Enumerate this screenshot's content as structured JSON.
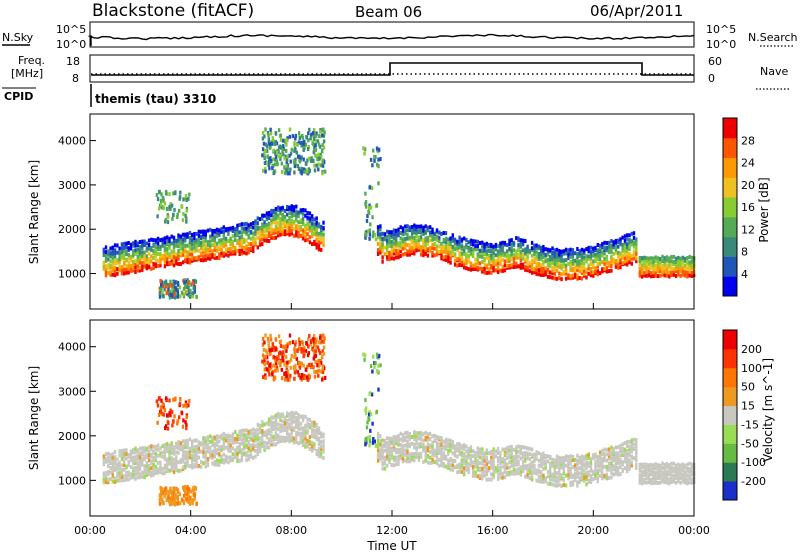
{
  "header": {
    "station": "Blackstone (fitACF)",
    "beam": "Beam 06",
    "date": "06/Apr/2011"
  },
  "noise_panel": {
    "left_label": "N.Sky",
    "right_label": "N.Search",
    "tick_top": "10^5",
    "tick_bottom": "10^0"
  },
  "freq_panel": {
    "left_label_1": "Freq.",
    "left_label_2": "[MHz]",
    "left_ticks": [
      "18",
      "8"
    ],
    "right_label": "Nave",
    "right_ticks": [
      "60",
      "0"
    ]
  },
  "cpid_panel": {
    "label": "CPID",
    "program": "themis (tau) 3310"
  },
  "chart_data": [
    {
      "type": "heatmap",
      "title": "Power",
      "xlabel": "",
      "ylabel": "Slant Range [km]",
      "xlim": [
        "00:00",
        "24:00"
      ],
      "ylim": [
        200,
        4600
      ],
      "y_ticks": [
        "1000",
        "2000",
        "3000",
        "4000"
      ],
      "colorbar": {
        "label": "Power [dB]",
        "ticks": [
          "28",
          "24",
          "20",
          "16",
          "12",
          "8",
          "4"
        ],
        "range": [
          0,
          30
        ],
        "colors": [
          "#0000ee",
          "#2255bb",
          "#3a8a7a",
          "#55aa55",
          "#88cc33",
          "#f0c020",
          "#ff9900",
          "#ff5500",
          "#ee0000"
        ]
      },
      "features": [
        {
          "name": "main band",
          "time_hours": [
            0.5,
            9.3
          ],
          "range_km": [
            1200,
            2300
          ]
        },
        {
          "name": "upper patch",
          "time_hours": [
            6.8,
            9.3
          ],
          "range_km": [
            3300,
            4300
          ]
        },
        {
          "name": "afternoon band",
          "time_hours": [
            11.5,
            21.7
          ],
          "range_km": [
            1200,
            1900
          ]
        },
        {
          "name": "evening band",
          "time_hours": [
            21.8,
            24.0
          ],
          "range_km": [
            1000,
            1400
          ]
        }
      ]
    },
    {
      "type": "heatmap",
      "title": "Velocity",
      "xlabel": "Time UT",
      "ylabel": "Slant Range [km]",
      "xlim": [
        "00:00",
        "24:00"
      ],
      "ylim": [
        200,
        4600
      ],
      "x_ticks": [
        "00:00",
        "04:00",
        "08:00",
        "12:00",
        "16:00",
        "20:00",
        "00:00"
      ],
      "y_ticks": [
        "1000",
        "2000",
        "3000",
        "4000"
      ],
      "colorbar": {
        "label": "Velocity [m s^-1]",
        "ticks": [
          "200",
          "100",
          "50",
          "15",
          "-15",
          "-50",
          "-100",
          "-200"
        ],
        "colors": [
          "#1a2fcc",
          "#2a7a55",
          "#66bb44",
          "#99dd55",
          "#c8c8c0",
          "#ee9922",
          "#ff7700",
          "#ff3300",
          "#ee0000"
        ]
      }
    }
  ]
}
